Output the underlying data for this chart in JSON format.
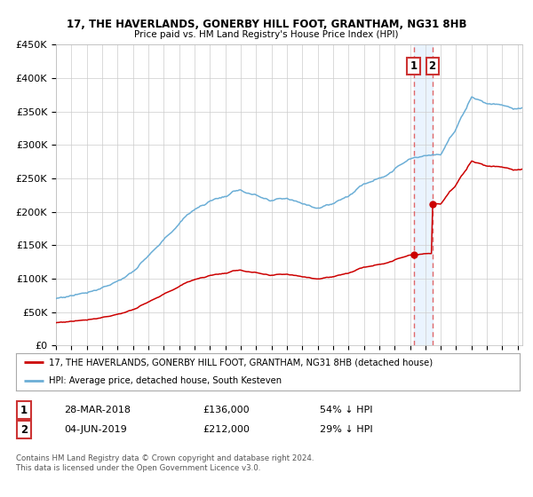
{
  "title": "17, THE HAVERLANDS, GONERBY HILL FOOT, GRANTHAM, NG31 8HB",
  "subtitle": "Price paid vs. HM Land Registry's House Price Index (HPI)",
  "legend_line1": "17, THE HAVERLANDS, GONERBY HILL FOOT, GRANTHAM, NG31 8HB (detached house)",
  "legend_line2": "HPI: Average price, detached house, South Kesteven",
  "annotation1_date": "28-MAR-2018",
  "annotation1_price": "£136,000",
  "annotation1_hpi": "54% ↓ HPI",
  "annotation2_date": "04-JUN-2019",
  "annotation2_price": "£212,000",
  "annotation2_hpi": "29% ↓ HPI",
  "footer": "Contains HM Land Registry data © Crown copyright and database right 2024.\nThis data is licensed under the Open Government Licence v3.0.",
  "hpi_color": "#6baed6",
  "price_color": "#cc0000",
  "marker_color": "#cc0000",
  "dashed_color": "#e05050",
  "highlight_color": "#ddeeff",
  "ylim": [
    0,
    450000
  ],
  "yticks": [
    0,
    50000,
    100000,
    150000,
    200000,
    250000,
    300000,
    350000,
    400000,
    450000
  ],
  "ytick_labels": [
    "£0",
    "£50K",
    "£100K",
    "£150K",
    "£200K",
    "£250K",
    "£300K",
    "£350K",
    "£400K",
    "£450K"
  ],
  "sale1_x": 2018.23,
  "sale1_y": 136000,
  "sale2_x": 2019.45,
  "sale2_y": 212000,
  "xmin": 1995,
  "xmax": 2025.3
}
